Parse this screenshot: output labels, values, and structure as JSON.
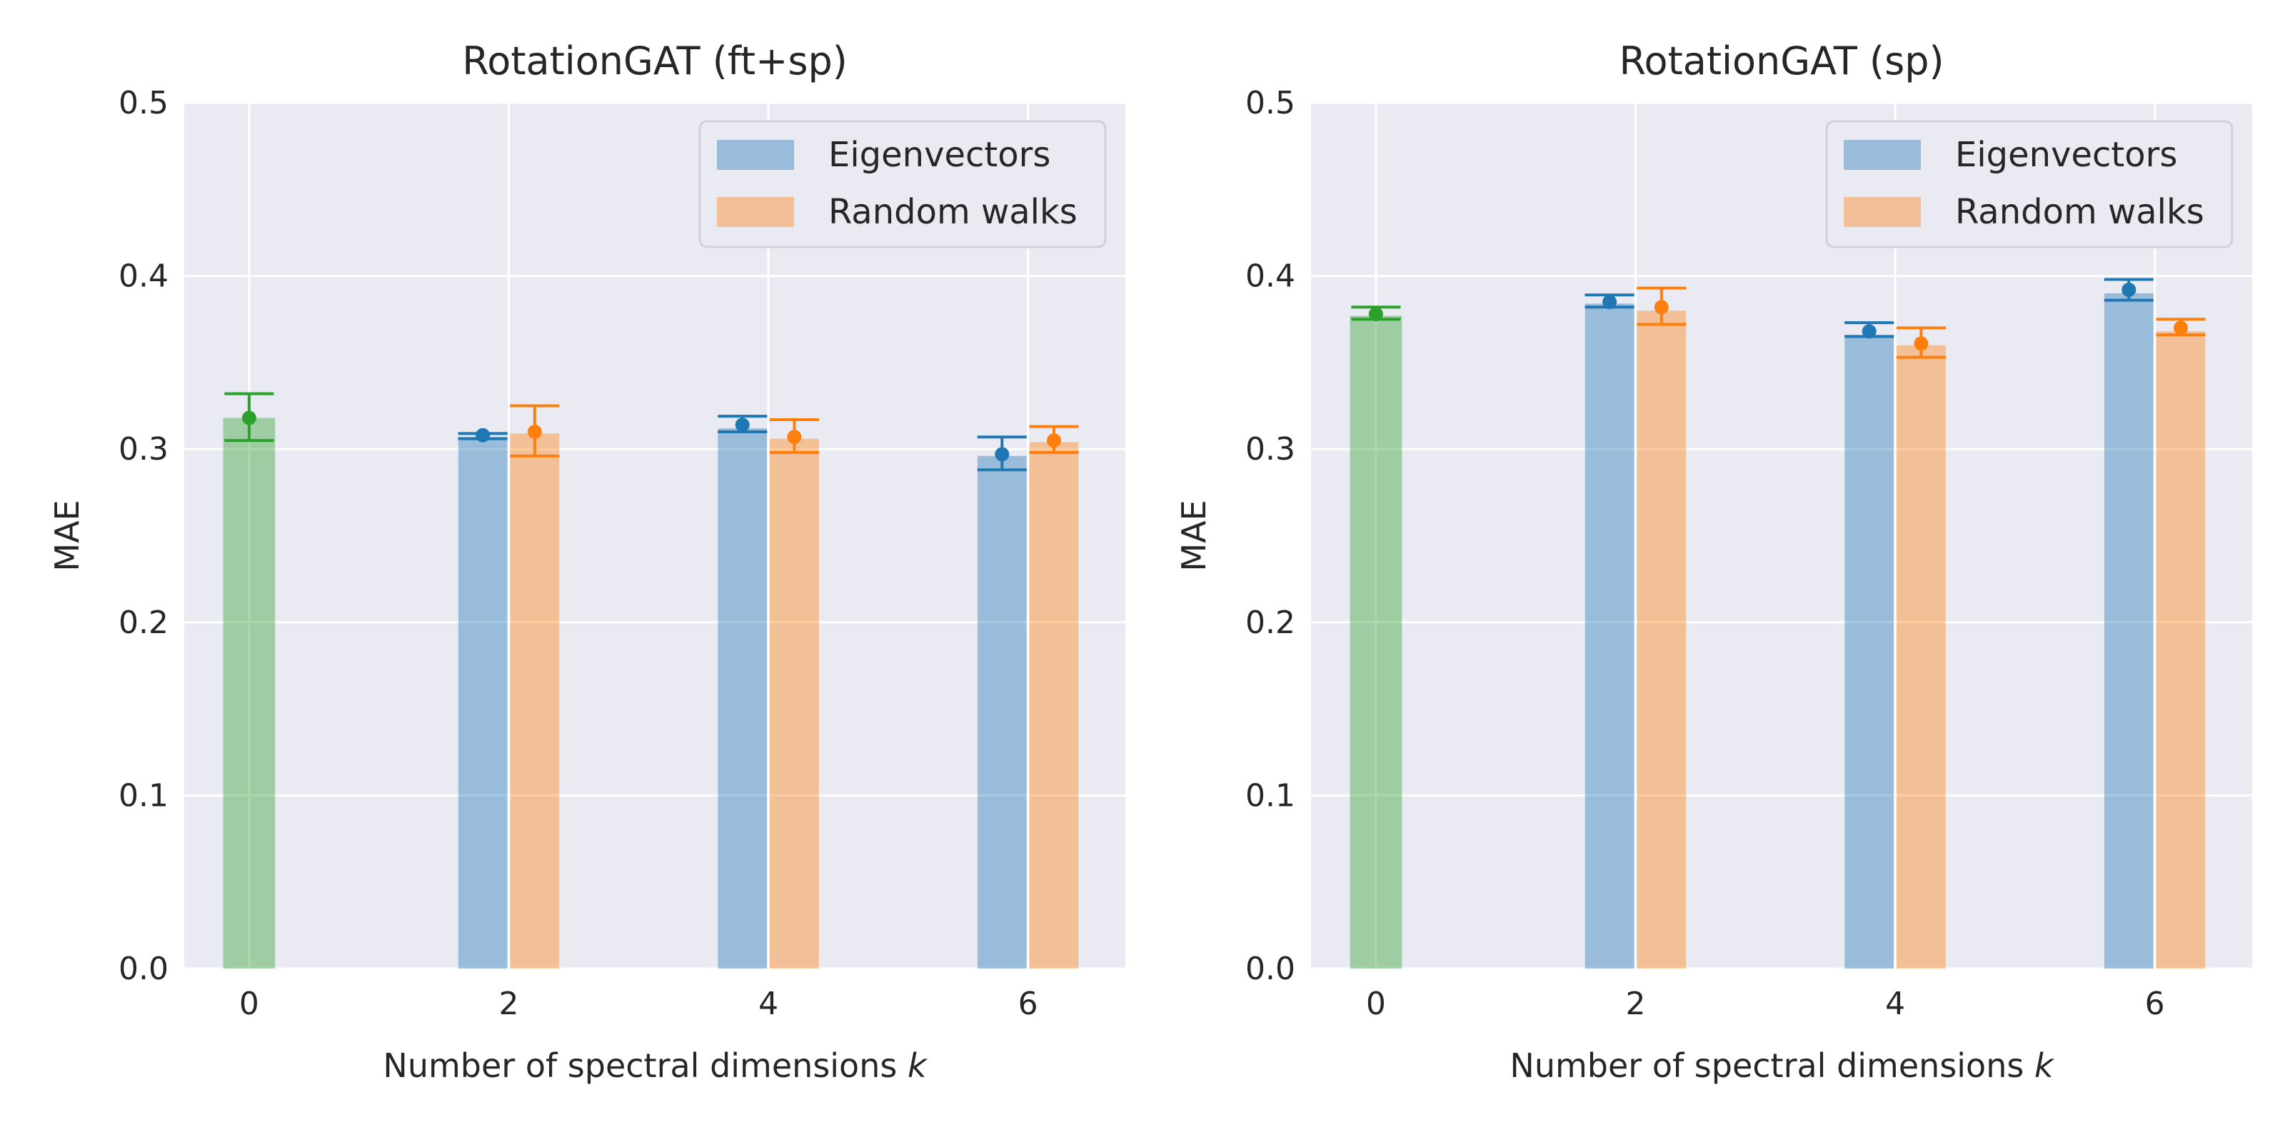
{
  "colors": {
    "background": "#eaeaf2",
    "grid": "#ffffff",
    "blue": "#1f77b4",
    "orange": "#ff7f0e",
    "green": "#2ca02c"
  },
  "chart_data": [
    {
      "type": "bar",
      "title": "RotationGAT (ft+sp)",
      "xlabel": "Number of spectral dimensions",
      "xlabel_var": "k",
      "ylabel": "MAE",
      "ylim": [
        0,
        0.5
      ],
      "yticks": [
        "0.0",
        "0.1",
        "0.2",
        "0.3",
        "0.4",
        "0.5"
      ],
      "xticks": [
        "0",
        "2",
        "4",
        "6"
      ],
      "grid": true,
      "legend": {
        "placement": "top-right",
        "entries": [
          "Eigenvectors",
          "Random walks"
        ]
      },
      "baseline": {
        "x": 0,
        "bar": 0.318,
        "point": 0.318,
        "lower": 0.305,
        "upper": 0.332
      },
      "series": [
        {
          "name": "Eigenvectors",
          "x": [
            2,
            4,
            6
          ],
          "bar": [
            0.307,
            0.312,
            0.296
          ],
          "point": [
            0.308,
            0.314,
            0.297
          ],
          "lower": [
            0.306,
            0.31,
            0.288
          ],
          "upper": [
            0.309,
            0.319,
            0.307
          ]
        },
        {
          "name": "Random walks",
          "x": [
            2,
            4,
            6
          ],
          "bar": [
            0.309,
            0.306,
            0.304
          ],
          "point": [
            0.31,
            0.307,
            0.305
          ],
          "lower": [
            0.296,
            0.298,
            0.298
          ],
          "upper": [
            0.325,
            0.317,
            0.313
          ]
        }
      ]
    },
    {
      "type": "bar",
      "title": "RotationGAT (sp)",
      "xlabel": "Number of spectral dimensions",
      "xlabel_var": "k",
      "ylabel": "MAE",
      "ylim": [
        0,
        0.5
      ],
      "yticks": [
        "0.0",
        "0.1",
        "0.2",
        "0.3",
        "0.4",
        "0.5"
      ],
      "xticks": [
        "0",
        "2",
        "4",
        "6"
      ],
      "grid": true,
      "legend": {
        "placement": "top-right",
        "entries": [
          "Eigenvectors",
          "Random walks"
        ]
      },
      "baseline": {
        "x": 0,
        "bar": 0.377,
        "point": 0.378,
        "lower": 0.375,
        "upper": 0.382
      },
      "series": [
        {
          "name": "Eigenvectors",
          "x": [
            2,
            4,
            6
          ],
          "bar": [
            0.384,
            0.366,
            0.39
          ],
          "point": [
            0.385,
            0.368,
            0.392
          ],
          "lower": [
            0.382,
            0.365,
            0.386
          ],
          "upper": [
            0.389,
            0.373,
            0.398
          ]
        },
        {
          "name": "Random walks",
          "x": [
            2,
            4,
            6
          ],
          "bar": [
            0.38,
            0.36,
            0.368
          ],
          "point": [
            0.382,
            0.361,
            0.37
          ],
          "lower": [
            0.372,
            0.353,
            0.366
          ],
          "upper": [
            0.393,
            0.37,
            0.375
          ]
        }
      ]
    }
  ]
}
